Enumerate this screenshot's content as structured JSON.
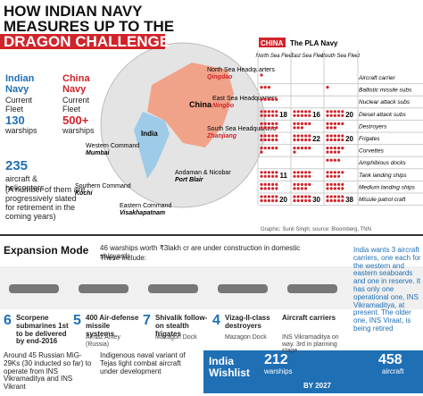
{
  "header": {
    "title": [
      "HOW INDIAN NAVY",
      "MEASURES UP TO THE",
      "DRAGON CHALLENGE"
    ]
  },
  "india": {
    "name": "Indian Navy",
    "fleet": "Current Fleet",
    "ships": "130",
    "ships_unit": "warships",
    "aircraft": "235",
    "aircraft_unit": "aircraft & helicopters",
    "note": "(A number of them are progressively slated for retirement in the coming years)"
  },
  "china": {
    "name": "China Navy",
    "fleet": "Current Fleet",
    "ships": "500+",
    "ships_unit": "warships"
  },
  "map": {
    "china": "China",
    "india": "India",
    "north": [
      "North Sea Headquarters",
      "Qingdao"
    ],
    "east": [
      "East Sea Headquarters",
      "Ningbo"
    ],
    "south": [
      "South Sea Headquarters",
      "Zhanjiang"
    ],
    "western": [
      "Western Command",
      "Mumbai"
    ],
    "southern": [
      "Southern Command",
      "Kochi"
    ],
    "eastern": [
      "Eastern Command",
      "Visakhapatnam"
    ],
    "andaman": [
      "Andaman & Nicobar",
      "Port Blair"
    ]
  },
  "table": {
    "tag": "CHINA",
    "title": "The PLA Navy",
    "columns": [
      "North Sea Fleet",
      "East Sea Fleet",
      "South Sea Fleet"
    ],
    "rows": [
      {
        "label": "Aircraft carrier",
        "values": [
          1,
          0,
          0
        ]
      },
      {
        "label": "Ballistic missile subs",
        "values": [
          3,
          0,
          1
        ]
      },
      {
        "label": "Nuclear attack subs",
        "values": [
          5,
          0,
          0
        ]
      },
      {
        "label": "Diesel attack subs",
        "values": [
          18,
          16,
          20
        ]
      },
      {
        "label": "Destroyers",
        "values": [
          10,
          8,
          8
        ]
      },
      {
        "label": "Frigates",
        "values": [
          10,
          22,
          20
        ]
      },
      {
        "label": "Corvettes",
        "values": [
          6,
          6,
          9
        ]
      },
      {
        "label": "Amphibious docks",
        "values": [
          0,
          0,
          4
        ]
      },
      {
        "label": "Tank landing ships",
        "values": [
          11,
          10,
          9
        ]
      },
      {
        "label": "Medium landing ships",
        "values": [
          10,
          9,
          10
        ]
      },
      {
        "label": "Missile patrol craft",
        "values": [
          20,
          30,
          38
        ]
      }
    ]
  },
  "credit": "Graphic: Sunil Singh; source: Bloomberg, TNN",
  "expansion": {
    "title": "Expansion Mode",
    "intro": "46 warships worth ₹3lakh cr are under construction in domestic shipyards",
    "include": "These include:",
    "items": [
      {
        "count": "6",
        "text": "Scorpene submarines 1st to be delivered by end-2016",
        "sub": ""
      },
      {
        "count": "5",
        "text": "400 Air-defense missile systems",
        "sub": "Almaz Antey (Russia)"
      },
      {
        "count": "7",
        "text": "Shivalik follow-on stealth frigates",
        "sub": "Mazagon Dock"
      },
      {
        "count": "4",
        "text": "Vizag-II-class destroyers",
        "sub": "Mazagon Dock"
      },
      {
        "count": "",
        "text": "Aircraft carriers",
        "sub": "INS Vikramaditya on way. 3rd in planning stage"
      }
    ],
    "mig": "Around 45 Russian MiG-29Ks (30 inducted so far) to operate from INS Vikramaditya and INS Vikrant",
    "tejas": "Indigenous naval variant of Tejas light combat aircraft under development",
    "carriers": "India wants 3 aircraft carriers, one each for the western and eastern seaboards and one in reserve. It has only one operational one, INS Vikramaditya, at present. The older one, INS Viraat, is being retired"
  },
  "wishlist": {
    "title": "India Wishlist",
    "ships": "212",
    "ships_unit": "warships",
    "aircraft": "458",
    "aircraft_unit": "aircraft",
    "by": "BY 2027"
  }
}
